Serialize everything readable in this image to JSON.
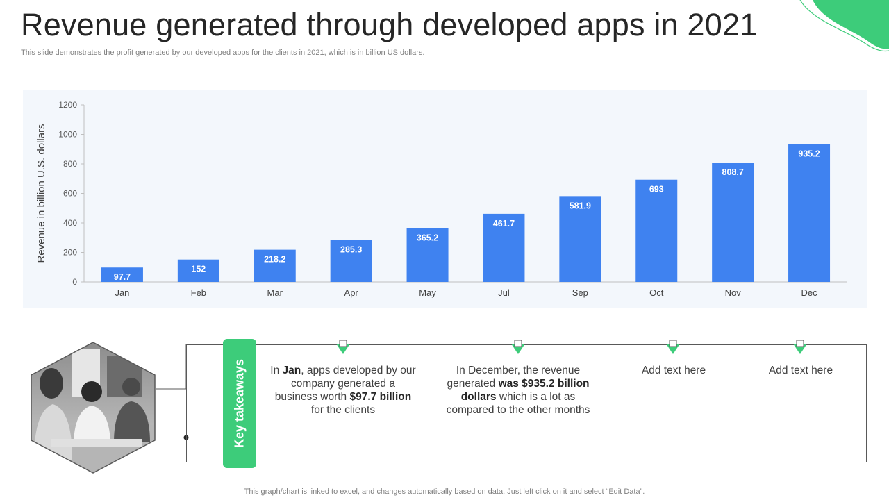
{
  "header": {
    "title": "Revenue generated through developed apps in 2021",
    "subtitle": "This slide demonstrates the profit generated by our developed apps for the clients in 2021, which is in billion US dollars."
  },
  "colors": {
    "bar": "#3f82f0",
    "accent_green": "#3dcc7a",
    "panel_bg": "#f3f7fc"
  },
  "chart_data": {
    "type": "bar",
    "title": "",
    "xlabel": "",
    "ylabel": "Revenue in billion U.S. dollars",
    "categories": [
      "Jan",
      "Feb",
      "Mar",
      "Apr",
      "May",
      "Jul",
      "Sep",
      "Oct",
      "Nov",
      "Dec"
    ],
    "values": [
      97.7,
      152,
      218.2,
      285.3,
      365.2,
      461.7,
      581.9,
      693,
      808.7,
      935.2
    ],
    "value_labels": [
      "97.7",
      "152",
      "218.2",
      "285.3",
      "365.2",
      "461.7",
      "581.9",
      "693",
      "808.7",
      "935.2"
    ],
    "ylim": [
      0,
      1200
    ],
    "yticks": [
      "0",
      "200",
      "400",
      "600",
      "800",
      "1000",
      "1200"
    ],
    "grid": false,
    "legend": "none"
  },
  "takeaways": {
    "label": "Key takeaways",
    "item1": {
      "t1": "In ",
      "b1": "Jan",
      "t2": ", apps developed by our company generated a business worth ",
      "b2": "$97.7 billion",
      "t3": " for the clients"
    },
    "item2": {
      "t1": "In December, the revenue generated ",
      "b1": "was $935.2 billion dollars",
      "t2": " which is a lot as compared to the other months"
    },
    "item3": "Add text here",
    "item4": "Add text here",
    "image_icon": "team-meeting-photo"
  },
  "footer": {
    "note": "This graph/chart is linked to excel, and changes automatically based on data. Just left click on it and select “Edit Data”."
  }
}
